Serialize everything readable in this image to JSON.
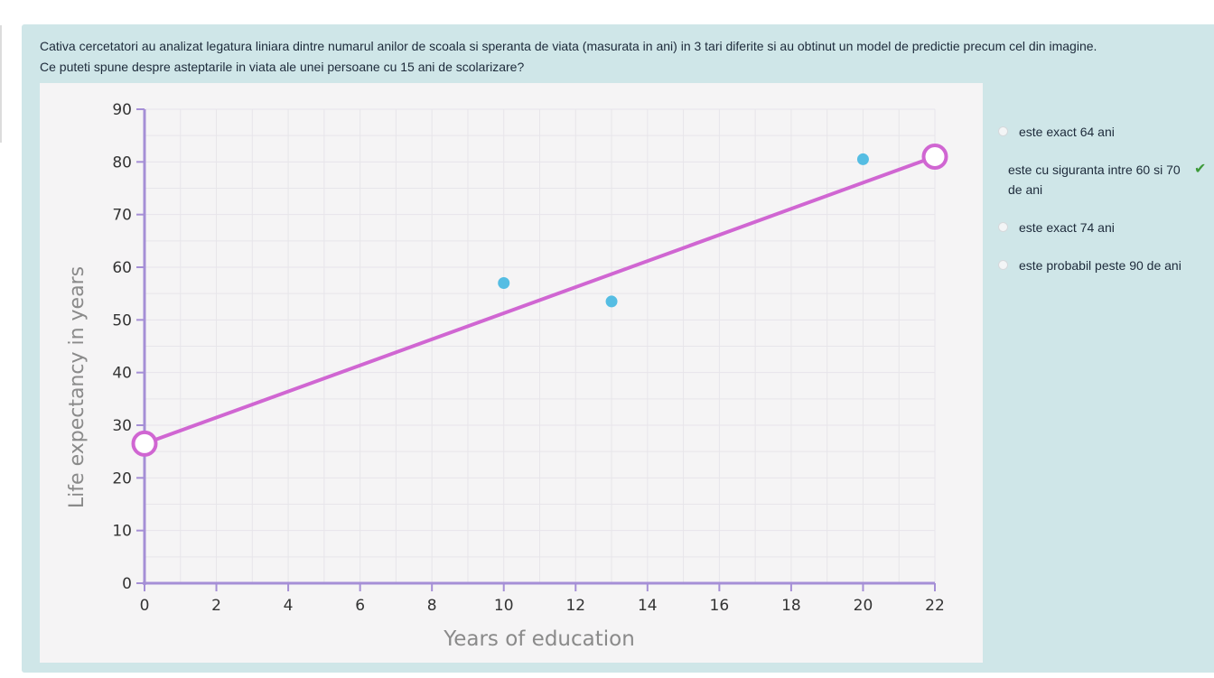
{
  "question": {
    "line1": "Cativa cercetatori au analizat legatura liniara dintre numarul anilor de scoala si speranta de viata (masurata in ani) in 3 tari diferite si au obtinut un model de predictie precum cel din imagine.",
    "line2": "Ce puteti spune despre asteptarile in viata ale unei persoane cu 15 ani de scolarizare?"
  },
  "answers": [
    {
      "label": "este exact 64 ani",
      "correct": false
    },
    {
      "label": "este cu siguranta intre 60 si 70 de ani",
      "correct": true
    },
    {
      "label": "este exact 74 ani",
      "correct": false
    },
    {
      "label": "este probabil peste 90 de ani",
      "correct": false
    }
  ],
  "check_mark": "✔",
  "colors": {
    "panel": "#cfe6e8",
    "line": "#d066d2",
    "axis": "#a58fd6",
    "point": "#55bde3"
  },
  "chart_data": {
    "type": "scatter",
    "xlabel": "Years of education",
    "ylabel": "Life expectancy in years",
    "xlim": [
      0,
      22
    ],
    "ylim": [
      0,
      90
    ],
    "x_ticks": [
      0,
      2,
      4,
      6,
      8,
      10,
      12,
      14,
      16,
      18,
      20,
      22
    ],
    "y_ticks": [
      0,
      10,
      20,
      30,
      40,
      50,
      60,
      70,
      80,
      90
    ],
    "points": [
      {
        "x": 10,
        "y": 57
      },
      {
        "x": 13,
        "y": 53.5
      },
      {
        "x": 20,
        "y": 80.5
      }
    ],
    "regression_line": {
      "start": {
        "x": 0,
        "y": 26.5
      },
      "end": {
        "x": 22,
        "y": 81
      }
    },
    "grid": true
  }
}
